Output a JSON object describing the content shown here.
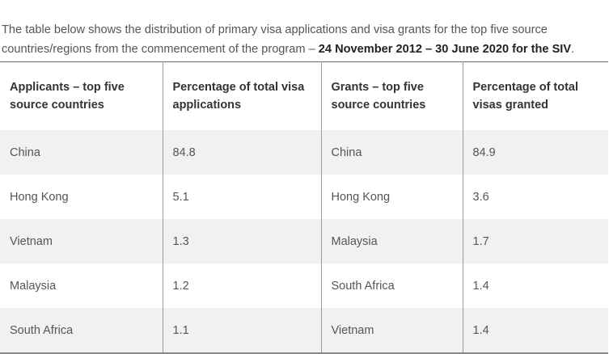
{
  "intro": {
    "text": "The table below shows the distribution of primary visa applications and visa grants for the top five source countries/regions from the commencement of the program – ",
    "bold": "24 November 2012 – 30 June 2020 for the SIV",
    "end": "."
  },
  "table": {
    "headers": [
      "Applicants – top five source countries",
      "Percentage of total visa applications",
      "Grants – top five source countries",
      "Percentage of total visas granted"
    ],
    "rows": [
      [
        "China",
        "84.8",
        "China",
        "84.9"
      ],
      [
        "Hong Kong",
        "5.1",
        "Hong Kong",
        "3.6"
      ],
      [
        "Vietnam",
        "1.3",
        "Malaysia",
        "1.7"
      ],
      [
        "Malaysia",
        "1.2",
        "South Africa",
        "1.4"
      ],
      [
        "South Africa",
        "1.1",
        "Vietnam",
        "1.4"
      ]
    ]
  }
}
